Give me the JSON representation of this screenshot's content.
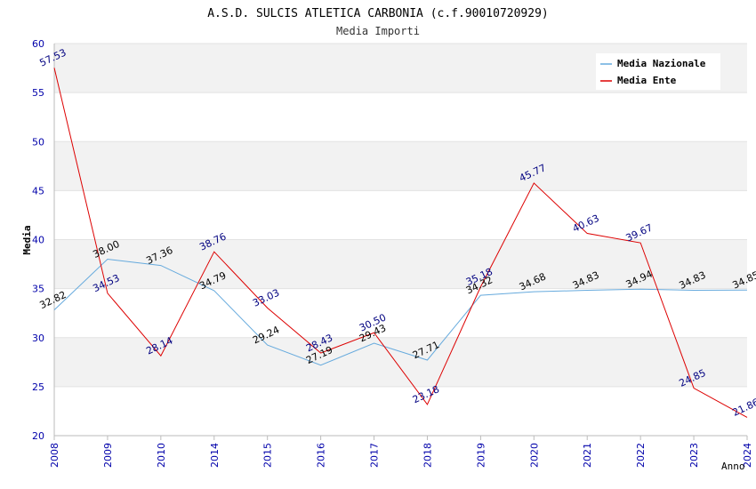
{
  "chart_data": {
    "type": "line",
    "title": "A.S.D. SULCIS ATLETICA CARBONIA (c.f.90010720929)",
    "subtitle": "Media Importi",
    "xlabel": "Anno",
    "ylabel": "Media",
    "ylim": [
      20,
      60
    ],
    "yticks": [
      20,
      25,
      30,
      35,
      40,
      45,
      50,
      55,
      60
    ],
    "grid": "horizontal alternating bands",
    "legend_position": "top-right",
    "categories": [
      "2008",
      "2009",
      "2010",
      "2014",
      "2015",
      "2016",
      "2017",
      "2018",
      "2019",
      "2020",
      "2021",
      "2022",
      "2023",
      "2024"
    ],
    "series": [
      {
        "name": "Media Nazionale",
        "color": "#66aadd",
        "label_color": "#000000",
        "values": [
          32.82,
          38.0,
          37.36,
          34.79,
          29.24,
          27.19,
          29.43,
          27.71,
          34.32,
          34.68,
          34.83,
          34.94,
          34.83,
          34.85
        ],
        "labels": [
          "32.82",
          "38.00",
          "37.36",
          "34.79",
          "29.24",
          "27.19",
          "29.43",
          "27.71",
          "34.32",
          "34.68",
          "34.83",
          "34.94",
          "34.83",
          "34.85"
        ]
      },
      {
        "name": "Media Ente",
        "color": "#dd0000",
        "label_color": "#000080",
        "values": [
          57.53,
          34.53,
          28.14,
          38.76,
          33.03,
          28.43,
          30.5,
          23.18,
          35.18,
          45.77,
          40.63,
          39.67,
          24.85,
          21.86
        ],
        "labels": [
          "57.53",
          "34.53",
          "28.14",
          "38.76",
          "33.03",
          "28.43",
          "30.50",
          "23.18",
          "35.18",
          "45.77",
          "40.63",
          "39.67",
          "24.85",
          "21.86"
        ]
      }
    ]
  }
}
